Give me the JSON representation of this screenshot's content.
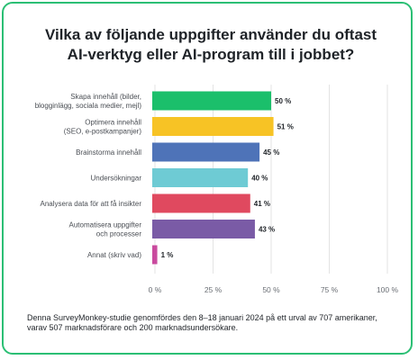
{
  "chart_data": {
    "type": "bar",
    "orientation": "horizontal",
    "title_lines": [
      "Vilka av följande uppgifter använder du oftast",
      "AI-verktyg eller AI-program till i jobbet?"
    ],
    "categories": [
      [
        "Skapa innehåll (bilder,",
        "blogginlägg, sociala medier, mejl)"
      ],
      [
        "Optimera innehåll",
        "(SEO, e-postkampanjer)"
      ],
      [
        "Brainstorma innehåll"
      ],
      [
        "Undersökningar"
      ],
      [
        "Analysera data för att få insikter"
      ],
      [
        "Automatisera uppgifter",
        "och processer"
      ],
      [
        "Annat (skriv vad)"
      ]
    ],
    "values": [
      50,
      51,
      45,
      40,
      41,
      43,
      1
    ],
    "value_labels": [
      "50 %",
      "51 %",
      "45 %",
      "40 %",
      "41 %",
      "43 %",
      "1 %"
    ],
    "colors": [
      "#1bbf6b",
      "#f7c325",
      "#4e73b8",
      "#6ecbd4",
      "#e0495f",
      "#7a5ba6",
      "#c94a9e"
    ],
    "xlim": [
      0,
      100
    ],
    "xticks": [
      0,
      25,
      50,
      75,
      100
    ],
    "xtick_labels": [
      "0 %",
      "25 %",
      "50 %",
      "75 %",
      "100 %"
    ],
    "grid": true,
    "accent_border": "#2bbf74"
  },
  "footnote": "Denna SurveyMonkey-studie genomfördes den 8–18 januari 2024 på ett urval av 707 amerikaner, varav 507 marknadsförare och 200 marknadsundersökare."
}
